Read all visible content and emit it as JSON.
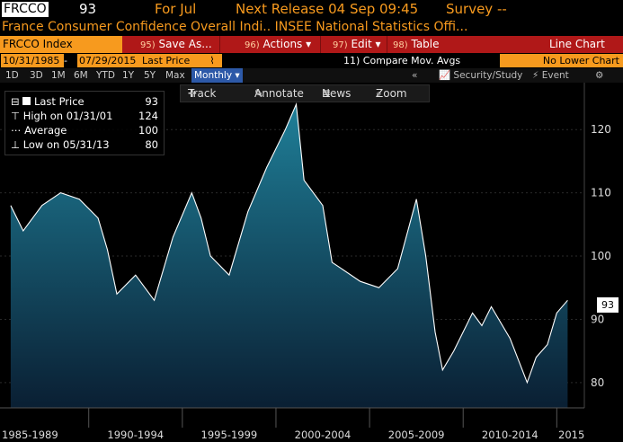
{
  "header": {
    "ticker": "FRCCO",
    "price": "93",
    "for_label": "For Jul",
    "next_release": "Next Release 04 Sep 09:45",
    "survey": "Survey --",
    "description": "France Consumer Confidence Overall Indi.. INSEE National Statistics Offi..."
  },
  "menubar": {
    "index_label": "FRCCO Index",
    "items": [
      {
        "num": "95)",
        "label": "Save As..."
      },
      {
        "num": "96)",
        "label": "Actions"
      },
      {
        "num": "97)",
        "label": "Edit"
      },
      {
        "num": "98)",
        "label": "Table"
      }
    ],
    "view_label": "Line Chart"
  },
  "range_bar": {
    "start_date": "10/31/1985",
    "end_date": "07/29/2015",
    "field": "Last Price",
    "chart_type_icon": "line-chart-icon",
    "compare": "11) Compare Mov. Avgs",
    "lower_chart": "No Lower Chart"
  },
  "period_bar": {
    "periods": [
      "1D",
      "3D",
      "1M",
      "6M",
      "YTD",
      "1Y",
      "5Y",
      "Max"
    ],
    "frequency": "Monthly",
    "security_study": "Security/Study",
    "event": "Event"
  },
  "toolbar": {
    "track": "Track",
    "annotate": "Annotate",
    "news": "News",
    "zoom": "Zoom"
  },
  "legend": {
    "last_label": "Last Price",
    "last_value": "93",
    "high_label": "High on 01/31/01",
    "high_value": "124",
    "avg_label": "Average",
    "avg_value": "100",
    "low_label": "Low on 05/31/13",
    "low_value": "80"
  },
  "last_tag": "93",
  "colors": {
    "accent_orange": "#f79a1e",
    "menubar_red": "#b01818",
    "line": "#ffffff",
    "area_top": "#1f7f98",
    "area_bottom": "#0a1f33"
  },
  "chart_data": {
    "type": "area",
    "ylim": [
      76,
      126
    ],
    "yticks": [
      80,
      90,
      100,
      110,
      120
    ],
    "x_labels": [
      "1985-1989",
      "1990-1994",
      "1995-1999",
      "2000-2004",
      "2005-2009",
      "2010-2014",
      "2015"
    ],
    "grid": true,
    "x": [
      1985.83,
      1986.5,
      1987.5,
      1988.5,
      1989.5,
      1990.5,
      1991.0,
      1991.5,
      1992.5,
      1993.5,
      1994.5,
      1995.5,
      1996.0,
      1996.5,
      1997.5,
      1998.5,
      1999.5,
      2000.5,
      2001.08,
      2001.5,
      2002.5,
      2003.0,
      2003.5,
      2004.5,
      2005.5,
      2006.5,
      2007.5,
      2008.0,
      2008.5,
      2008.9,
      2009.5,
      2010.5,
      2011.0,
      2011.5,
      2012.5,
      2013.42,
      2013.9,
      2014.5,
      2015.0,
      2015.58
    ],
    "y": [
      108,
      104,
      108,
      110,
      109,
      106,
      101,
      94,
      97,
      93,
      103,
      110,
      106,
      100,
      97,
      107,
      114,
      120,
      124,
      112,
      108,
      99,
      98,
      96,
      95,
      98,
      109,
      100,
      88,
      82,
      85,
      91,
      89,
      92,
      87,
      80,
      84,
      86,
      91,
      93
    ]
  }
}
